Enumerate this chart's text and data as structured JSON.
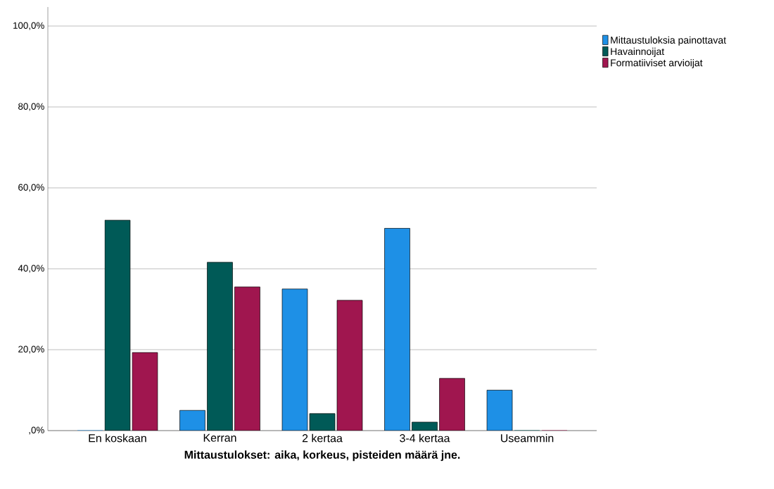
{
  "chart_data": {
    "type": "bar",
    "xlabel": "Mittaustulokset: aika, korkeus, pisteiden määrä jne.",
    "categories": [
      "En koskaan",
      "Kerran",
      "2 kertaa",
      "3-4 kertaa",
      "Useammin"
    ],
    "series": [
      {
        "name": "Mittaustuloksia painottavat",
        "color": "#1e90e6",
        "values": [
          0,
          5.0,
          35.0,
          50.0,
          10.0
        ]
      },
      {
        "name": "Havainnoijat",
        "color": "#005a57",
        "values": [
          52.0,
          41.6,
          4.2,
          2.1,
          0
        ]
      },
      {
        "name": "Formatiiviset arvioijat",
        "color": "#a0164f",
        "values": [
          19.3,
          35.5,
          32.2,
          12.9,
          0
        ]
      }
    ],
    "ylim": [
      0,
      104.7
    ],
    "yticks": [
      {
        "value": 0,
        "label": ",0%"
      },
      {
        "value": 20,
        "label": "20,0%"
      },
      {
        "value": 40,
        "label": "40,0%"
      },
      {
        "value": 60,
        "label": "60,0%"
      },
      {
        "value": 80,
        "label": "80,0%"
      },
      {
        "value": 100,
        "label": "100,0%"
      }
    ],
    "grid": "y",
    "legend": "top right"
  }
}
